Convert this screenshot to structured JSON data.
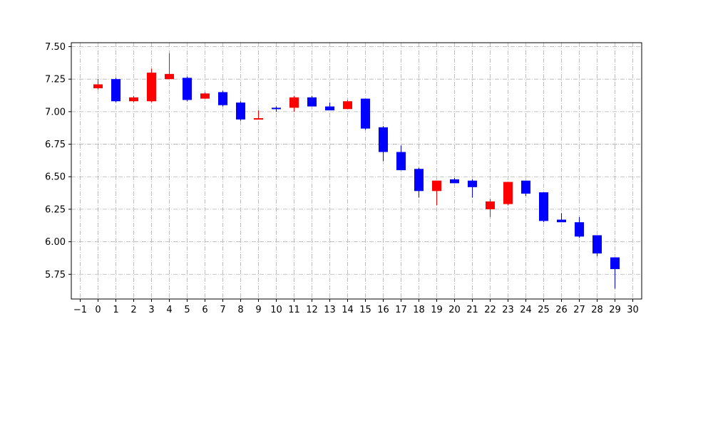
{
  "chart_data": {
    "type": "candlestick",
    "title": "",
    "xlabel": "",
    "ylabel": "",
    "xlim": [
      -1.5,
      30.5
    ],
    "ylim": [
      5.56,
      7.53
    ],
    "x_ticks": [
      -1,
      0,
      1,
      2,
      3,
      4,
      5,
      6,
      7,
      8,
      9,
      10,
      11,
      12,
      13,
      14,
      15,
      16,
      17,
      18,
      19,
      20,
      21,
      22,
      23,
      24,
      25,
      26,
      27,
      28,
      29,
      30
    ],
    "x_tick_labels": [
      "−1",
      "0",
      "1",
      "2",
      "3",
      "4",
      "5",
      "6",
      "7",
      "8",
      "9",
      "10",
      "11",
      "12",
      "13",
      "14",
      "15",
      "16",
      "17",
      "18",
      "19",
      "20",
      "21",
      "22",
      "23",
      "24",
      "25",
      "26",
      "27",
      "28",
      "29",
      "30"
    ],
    "y_ticks": [
      5.75,
      6.0,
      6.25,
      6.5,
      6.75,
      7.0,
      7.25,
      7.5
    ],
    "y_tick_labels": [
      "5.75",
      "6.00",
      "6.25",
      "6.50",
      "6.75",
      "7.00",
      "7.25",
      "7.50"
    ],
    "grid": true,
    "colors": {
      "up": "#ff0000",
      "down": "#0000ff",
      "grid": "#b0b0b0"
    },
    "candles": [
      {
        "x": 0,
        "open": 7.18,
        "close": 7.21,
        "high": 7.25,
        "low": 7.17
      },
      {
        "x": 1,
        "open": 7.25,
        "close": 7.08,
        "high": 7.26,
        "low": 7.07
      },
      {
        "x": 2,
        "open": 7.08,
        "close": 7.11,
        "high": 7.12,
        "low": 7.07
      },
      {
        "x": 3,
        "open": 7.08,
        "close": 7.3,
        "high": 7.33,
        "low": 7.07
      },
      {
        "x": 4,
        "open": 7.25,
        "close": 7.29,
        "high": 7.45,
        "low": 7.25
      },
      {
        "x": 5,
        "open": 7.26,
        "close": 7.09,
        "high": 7.27,
        "low": 7.08
      },
      {
        "x": 6,
        "open": 7.1,
        "close": 7.14,
        "high": 7.15,
        "low": 7.1
      },
      {
        "x": 7,
        "open": 7.15,
        "close": 7.05,
        "high": 7.16,
        "low": 7.04
      },
      {
        "x": 8,
        "open": 7.07,
        "close": 6.94,
        "high": 7.08,
        "low": 6.93
      },
      {
        "x": 9,
        "open": 6.94,
        "close": 6.95,
        "high": 7.01,
        "low": 6.94
      },
      {
        "x": 10,
        "open": 7.03,
        "close": 7.02,
        "high": 7.04,
        "low": 7.0
      },
      {
        "x": 11,
        "open": 7.03,
        "close": 7.11,
        "high": 7.12,
        "low": 7.0
      },
      {
        "x": 12,
        "open": 7.11,
        "close": 7.04,
        "high": 7.12,
        "low": 7.04
      },
      {
        "x": 13,
        "open": 7.04,
        "close": 7.01,
        "high": 7.07,
        "low": 7.01
      },
      {
        "x": 14,
        "open": 7.02,
        "close": 7.08,
        "high": 7.09,
        "low": 7.02
      },
      {
        "x": 15,
        "open": 7.1,
        "close": 6.87,
        "high": 7.1,
        "low": 6.86
      },
      {
        "x": 16,
        "open": 6.88,
        "close": 6.69,
        "high": 6.89,
        "low": 6.62
      },
      {
        "x": 17,
        "open": 6.69,
        "close": 6.55,
        "high": 6.74,
        "low": 6.55
      },
      {
        "x": 18,
        "open": 6.56,
        "close": 6.39,
        "high": 6.57,
        "low": 6.34
      },
      {
        "x": 19,
        "open": 6.39,
        "close": 6.47,
        "high": 6.47,
        "low": 6.28
      },
      {
        "x": 20,
        "open": 6.48,
        "close": 6.45,
        "high": 6.49,
        "low": 6.45
      },
      {
        "x": 21,
        "open": 6.47,
        "close": 6.42,
        "high": 6.48,
        "low": 6.34
      },
      {
        "x": 22,
        "open": 6.25,
        "close": 6.31,
        "high": 6.33,
        "low": 6.19
      },
      {
        "x": 23,
        "open": 6.29,
        "close": 6.46,
        "high": 6.46,
        "low": 6.28
      },
      {
        "x": 24,
        "open": 6.47,
        "close": 6.37,
        "high": 6.47,
        "low": 6.35
      },
      {
        "x": 25,
        "open": 6.38,
        "close": 6.16,
        "high": 6.38,
        "low": 6.15
      },
      {
        "x": 26,
        "open": 6.17,
        "close": 6.15,
        "high": 6.22,
        "low": 6.15
      },
      {
        "x": 27,
        "open": 6.15,
        "close": 6.04,
        "high": 6.19,
        "low": 6.03
      },
      {
        "x": 28,
        "open": 6.05,
        "close": 5.91,
        "high": 6.05,
        "low": 5.89
      },
      {
        "x": 29,
        "open": 5.88,
        "close": 5.79,
        "high": 5.88,
        "low": 5.64
      }
    ]
  }
}
